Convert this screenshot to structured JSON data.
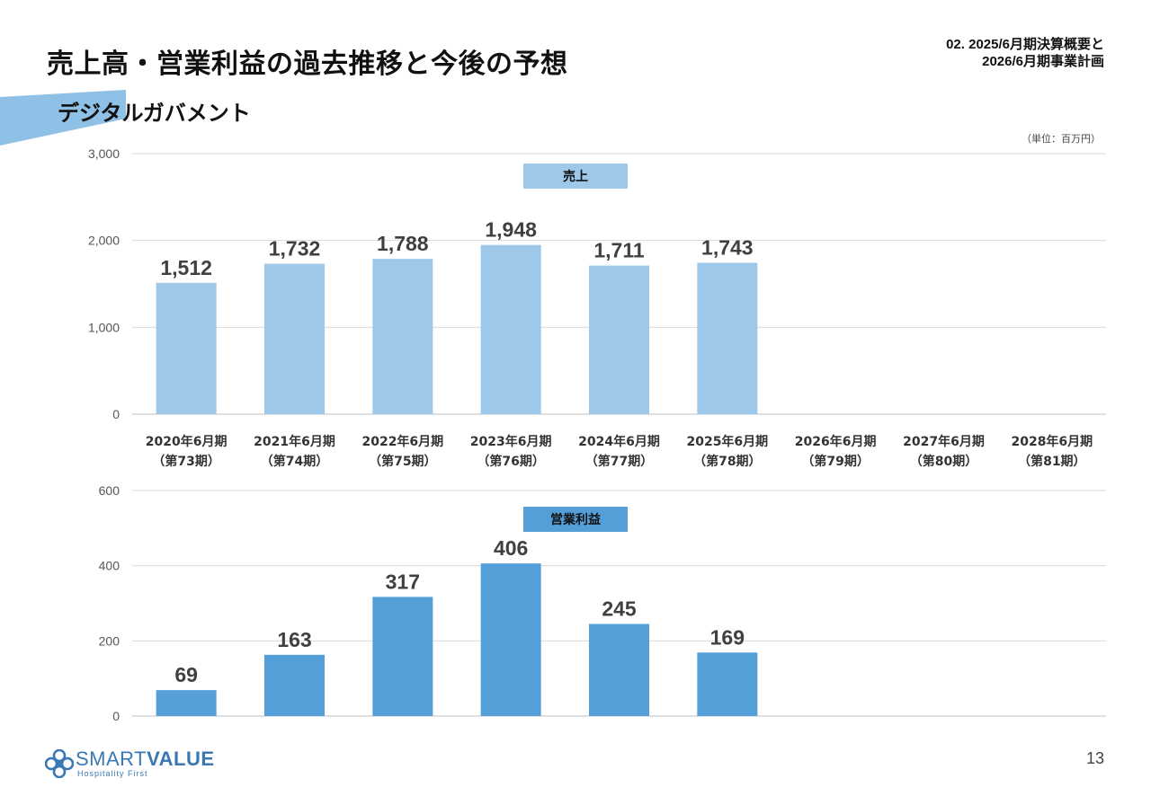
{
  "header": {
    "title": "売上高・営業利益の過去推移と今後の予想",
    "section_line1": "02. 2025/6月期決算概要と",
    "section_line2": "2026/6月期事業計画",
    "subtitle": "デジタルガバメント",
    "unit": "（単位：百万円）"
  },
  "colors": {
    "sales_bar": "#9dc8ea",
    "profit_bar": "#559fd9",
    "accent": "#8fc0e6",
    "grid": "#d9d9d9",
    "brand": "#3a78b5"
  },
  "chart_data": [
    {
      "type": "bar",
      "title": "売上",
      "categories": [
        [
          "2020年6月期",
          "（第73期）"
        ],
        [
          "2021年6月期",
          "（第74期）"
        ],
        [
          "2022年6月期",
          "（第75期）"
        ],
        [
          "2023年6月期",
          "（第76期）"
        ],
        [
          "2024年6月期",
          "（第77期）"
        ],
        [
          "2025年6月期",
          "（第78期）"
        ],
        [
          "2026年6月期",
          "（第79期）"
        ],
        [
          "2027年6月期",
          "（第80期）"
        ],
        [
          "2028年6月期",
          "（第81期）"
        ]
      ],
      "values": [
        1512,
        1732,
        1788,
        1948,
        1711,
        1743,
        null,
        null,
        null
      ],
      "data_labels": [
        "1,512",
        "1,732",
        "1,788",
        "1,948",
        "1,711",
        "1,743",
        "",
        "",
        ""
      ],
      "ylim": [
        0,
        3000
      ],
      "yticks": [
        0,
        1000,
        2000,
        3000
      ],
      "ytick_labels": [
        "0",
        "1,000",
        "2,000",
        "3,000"
      ],
      "grid": true,
      "xlabel": "",
      "ylabel": ""
    },
    {
      "type": "bar",
      "title": "営業利益",
      "categories": [
        [
          "2020年6月期",
          "（第73期）"
        ],
        [
          "2021年6月期",
          "（第74期）"
        ],
        [
          "2022年6月期",
          "（第75期）"
        ],
        [
          "2023年6月期",
          "（第76期）"
        ],
        [
          "2024年6月期",
          "（第77期）"
        ],
        [
          "2025年6月期",
          "（第78期）"
        ],
        [
          "2026年6月期",
          "（第79期）"
        ],
        [
          "2027年6月期",
          "（第80期）"
        ],
        [
          "2028年6月期",
          "（第81期）"
        ]
      ],
      "values": [
        69,
        163,
        317,
        406,
        245,
        169,
        null,
        null,
        null
      ],
      "data_labels": [
        "69",
        "163",
        "317",
        "406",
        "245",
        "169",
        "",
        "",
        ""
      ],
      "ylim": [
        0,
        600
      ],
      "yticks": [
        0,
        200,
        400,
        600
      ],
      "ytick_labels": [
        "0",
        "200",
        "400",
        "600"
      ],
      "grid": true,
      "xlabel": "",
      "ylabel": ""
    }
  ],
  "footer": {
    "brand_smart": "SMART",
    "brand_value": "VALUE",
    "tagline": "Hospitality First",
    "page_number": "13",
    "logo_icon": "clover-cross-icon"
  }
}
